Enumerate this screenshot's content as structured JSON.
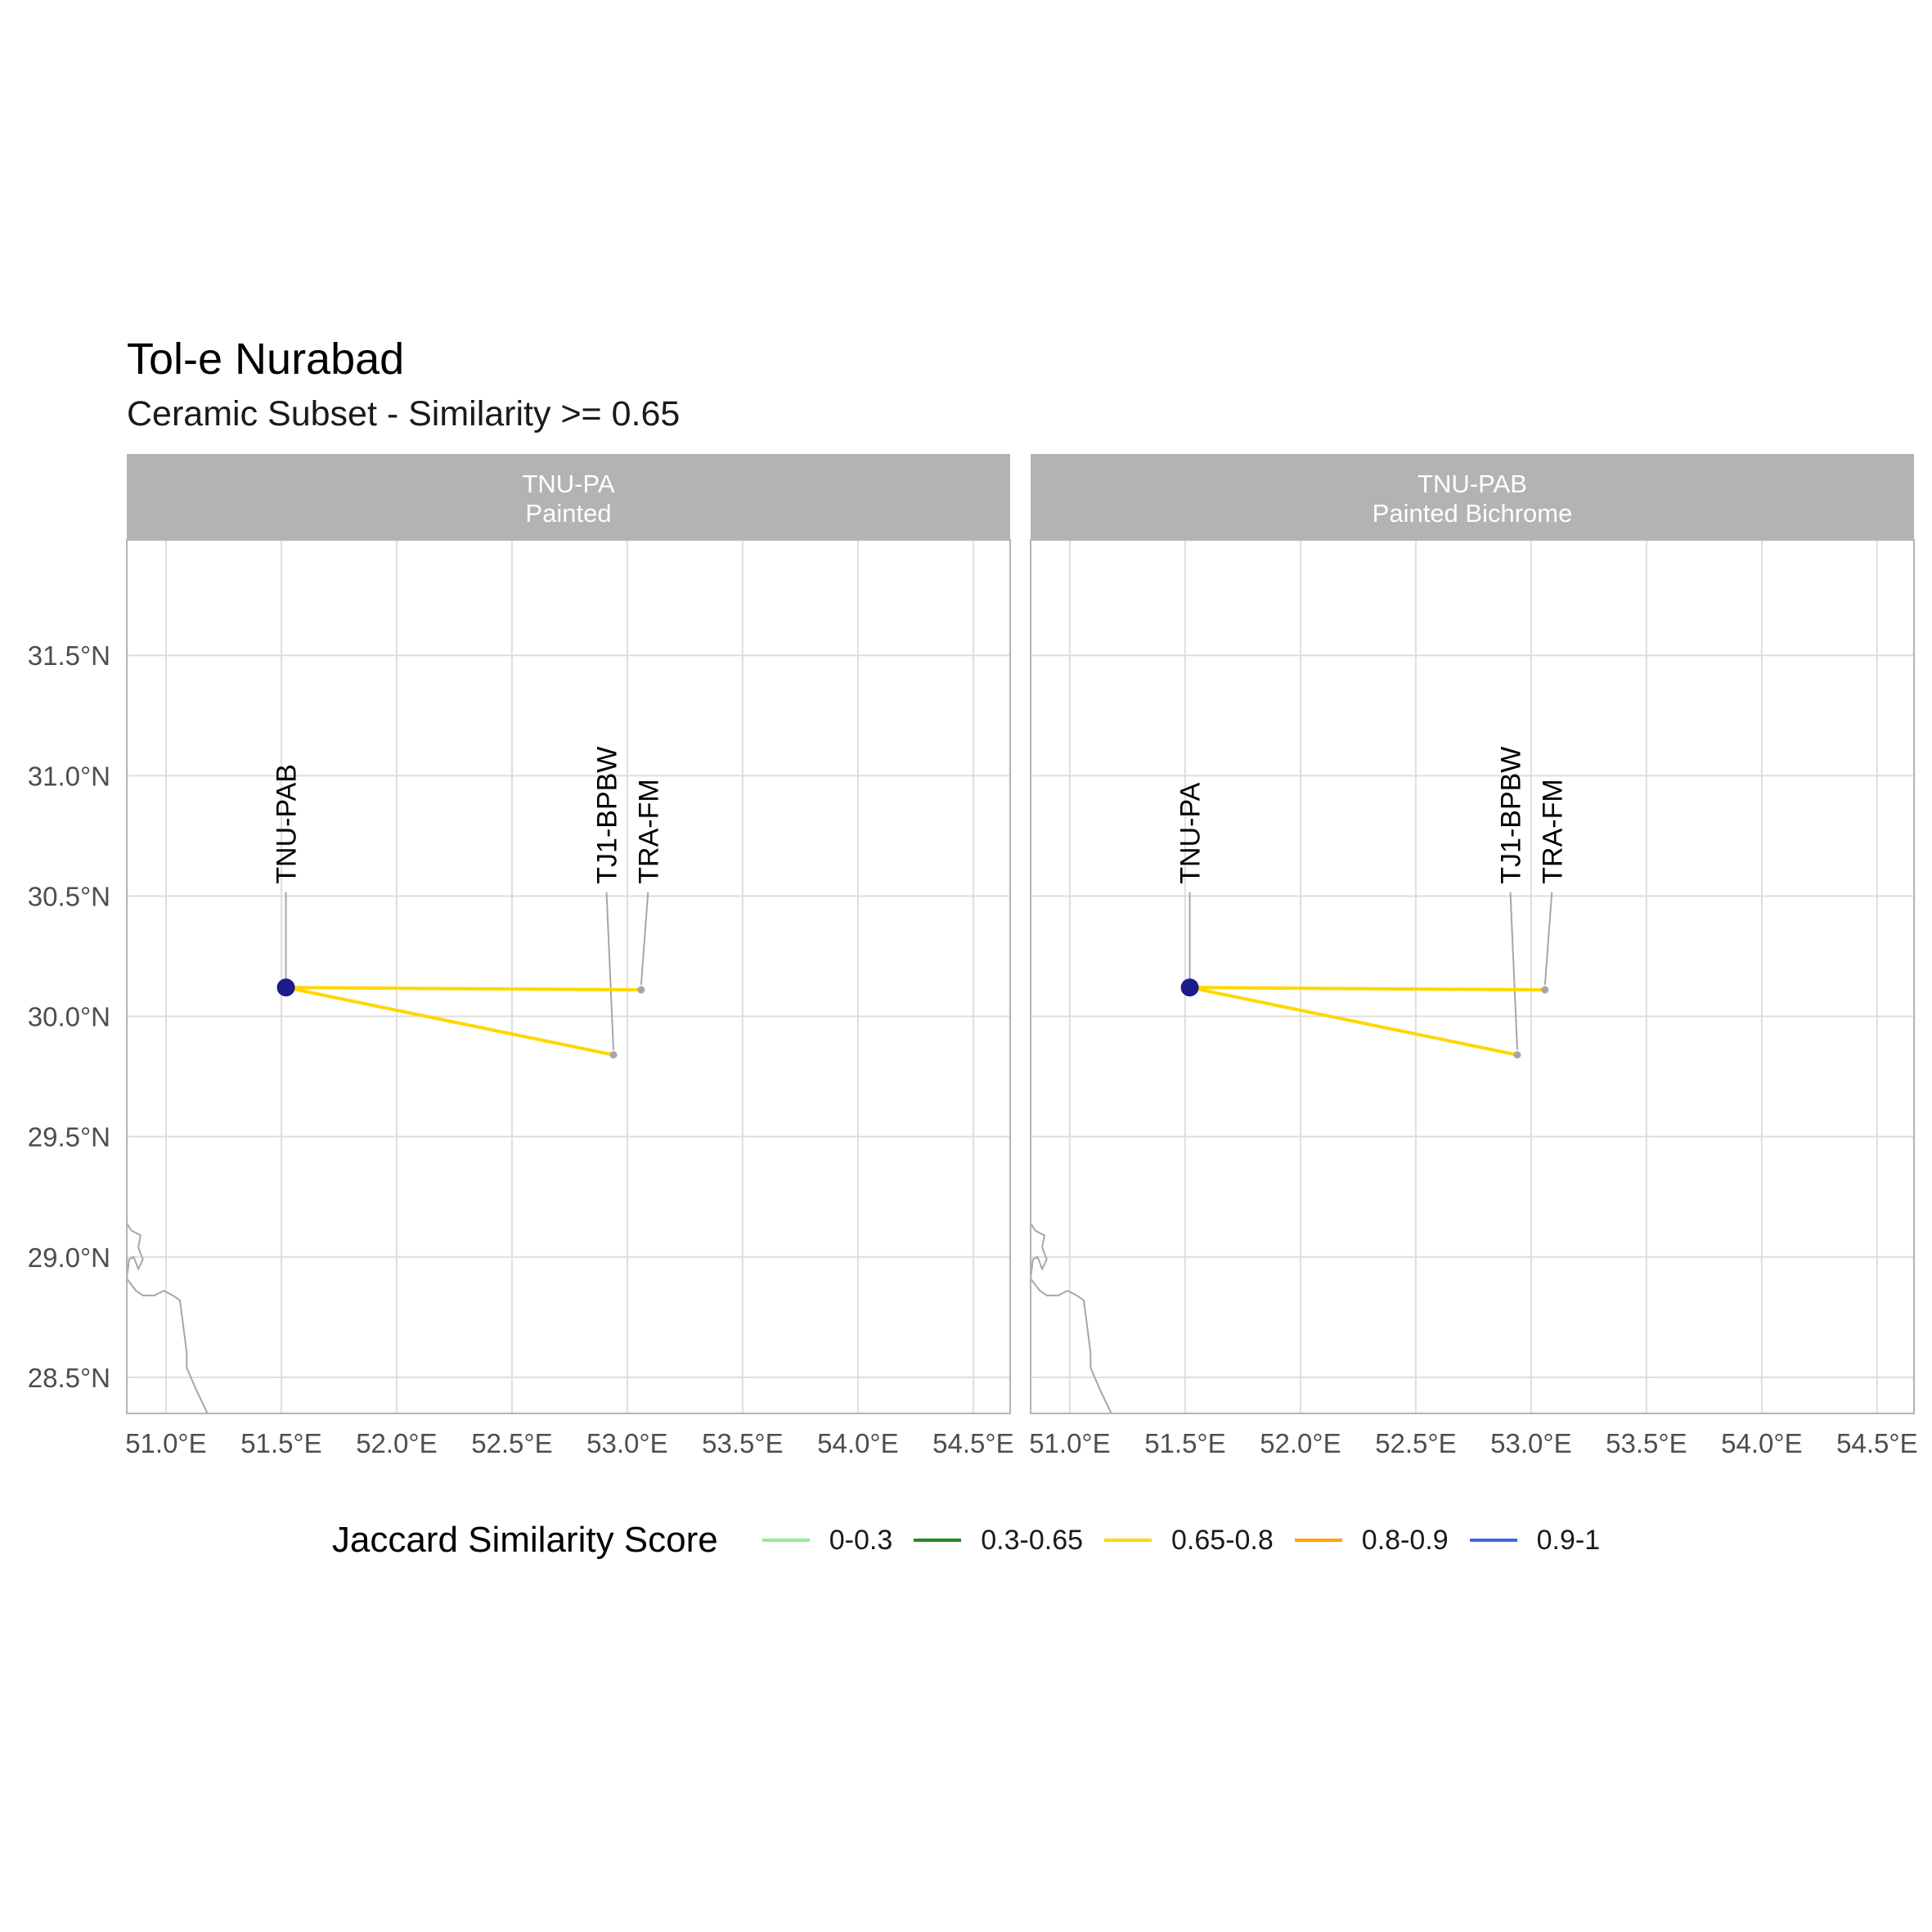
{
  "title": "Tol-e Nurabad",
  "subtitle": "Ceramic Subset - Similarity >= 0.65",
  "map_data": {
    "type": "network-map",
    "xlim": [
      50.83,
      54.66
    ],
    "ylim": [
      28.35,
      31.98
    ],
    "x_ticks": [
      51.0,
      51.5,
      52.0,
      52.5,
      53.0,
      53.5,
      54.0,
      54.5
    ],
    "y_ticks": [
      28.5,
      29.0,
      29.5,
      30.0,
      30.5,
      31.0,
      31.5
    ],
    "x_tick_labels": [
      "51.0°E",
      "51.5°E",
      "52.0°E",
      "52.5°E",
      "53.0°E",
      "53.5°E",
      "54.0°E",
      "54.5°E"
    ],
    "y_tick_labels": [
      "28.5°N",
      "29.0°N",
      "29.5°N",
      "30.0°N",
      "30.5°N",
      "31.0°N",
      "31.5°N"
    ],
    "grid": true,
    "legend_position": "bottom",
    "panels": [
      {
        "strip_line1": "TNU-PA",
        "strip_line2": "Painted",
        "focal_site": {
          "lon": 51.52,
          "lat": 30.12,
          "color": "#1c1c8c"
        },
        "sites": [
          {
            "name": "TNU-PAB",
            "lon": 51.52,
            "lat": 30.12,
            "label_lon": 51.52,
            "label_lat": 30.55
          },
          {
            "name": "TJ1-BPBW",
            "lon": 52.94,
            "lat": 29.84,
            "label_lon": 52.91,
            "label_lat": 30.55
          },
          {
            "name": "TRA-FM",
            "lon": 53.06,
            "lat": 30.11,
            "label_lon": 53.09,
            "label_lat": 30.55
          }
        ],
        "links": [
          {
            "to": "TRA-FM",
            "score_band": "0.65-0.8"
          },
          {
            "to": "TJ1-BPBW",
            "score_band": "0.65-0.8"
          }
        ]
      },
      {
        "strip_line1": "TNU-PAB",
        "strip_line2": "Painted Bichrome",
        "focal_site": {
          "lon": 51.52,
          "lat": 30.12,
          "color": "#1c1c8c"
        },
        "sites": [
          {
            "name": "TNU-PA",
            "lon": 51.52,
            "lat": 30.12,
            "label_lon": 51.52,
            "label_lat": 30.55
          },
          {
            "name": "TJ1-BPBW",
            "lon": 52.94,
            "lat": 29.84,
            "label_lon": 52.91,
            "label_lat": 30.55
          },
          {
            "name": "TRA-FM",
            "lon": 53.06,
            "lat": 30.11,
            "label_lon": 53.09,
            "label_lat": 30.55
          }
        ],
        "links": [
          {
            "to": "TRA-FM",
            "score_band": "0.65-0.8"
          },
          {
            "to": "TJ1-BPBW",
            "score_band": "0.65-0.8"
          }
        ]
      }
    ],
    "coastline": [
      [
        50.83,
        29.14
      ],
      [
        50.85,
        29.11
      ],
      [
        50.89,
        29.09
      ],
      [
        50.88,
        29.04
      ],
      [
        50.9,
        28.99
      ],
      [
        50.88,
        28.95
      ],
      [
        50.86,
        29.0
      ],
      [
        50.84,
        28.99
      ],
      [
        50.83,
        28.91
      ],
      [
        50.87,
        28.86
      ],
      [
        50.9,
        28.84
      ],
      [
        50.95,
        28.84
      ],
      [
        50.99,
        28.86
      ],
      [
        51.03,
        28.84
      ],
      [
        51.06,
        28.82
      ],
      [
        51.07,
        28.75
      ],
      [
        51.09,
        28.6
      ],
      [
        51.09,
        28.54
      ],
      [
        51.13,
        28.45
      ],
      [
        51.18,
        28.35
      ]
    ],
    "coastline_color": "#a6a6a6",
    "site_point_color": "#a6a6a6"
  },
  "legend": {
    "title": "Jaccard Similarity Score",
    "items": [
      {
        "label": "0-0.3",
        "color": "#90ee90"
      },
      {
        "label": "0.3-0.65",
        "color": "#228b22"
      },
      {
        "label": "0.65-0.8",
        "color": "#ffd700"
      },
      {
        "label": "0.8-0.9",
        "color": "#ffa500"
      },
      {
        "label": "0.9-1",
        "color": "#4169e1"
      }
    ]
  }
}
